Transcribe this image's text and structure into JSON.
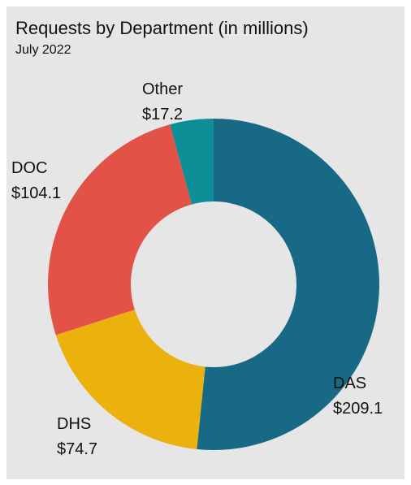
{
  "chart_data": {
    "type": "donut",
    "title": "Requests by Department (in millions)",
    "subtitle": "July 2022",
    "categories": [
      "DAS",
      "DHS",
      "DOC",
      "Other"
    ],
    "values": [
      209.1,
      74.7,
      104.1,
      17.2
    ],
    "value_labels": [
      "$209.1",
      "$74.7",
      "$104.1",
      "$17.2"
    ],
    "colors": [
      "#176985",
      "#ebb10d",
      "#e25246",
      "#0c8f96"
    ]
  }
}
